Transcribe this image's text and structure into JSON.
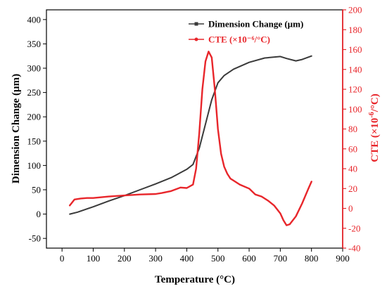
{
  "chart_data": {
    "type": "line",
    "xlabel": "Temperature (°C)",
    "xlim": [
      -50,
      900
    ],
    "xticks": [
      0,
      100,
      200,
      300,
      400,
      500,
      600,
      700,
      800,
      900
    ],
    "y_left": {
      "label": "Dimension Change (µm)",
      "ylim": [
        -70,
        420
      ],
      "ticks": [
        -50,
        0,
        50,
        100,
        150,
        200,
        250,
        300,
        350,
        400
      ],
      "color": "#222222"
    },
    "y_right": {
      "label_main": "CTE (×10",
      "label_sup": "-6",
      "label_end": "/°C)",
      "ylim": [
        -40,
        200
      ],
      "ticks": [
        -40,
        -20,
        0,
        20,
        40,
        60,
        80,
        100,
        120,
        140,
        160,
        180,
        200
      ],
      "color": "#e8262b"
    },
    "grid": false,
    "legend_position": "top-right",
    "series": [
      {
        "name": "Dimension Change (µm)",
        "axis": "left",
        "color": "#3a3a3a",
        "x": [
          25,
          50,
          100,
          150,
          200,
          250,
          300,
          350,
          400,
          420,
          440,
          460,
          480,
          500,
          520,
          550,
          600,
          650,
          700,
          720,
          750,
          770,
          800
        ],
        "y": [
          0,
          4,
          15,
          27,
          38,
          50,
          62,
          75,
          92,
          102,
          135,
          185,
          235,
          270,
          285,
          298,
          312,
          321,
          324,
          320,
          315,
          318,
          325
        ]
      },
      {
        "name": "CTE (×10⁻⁶/°C)",
        "axis": "right",
        "color": "#e8262b",
        "x": [
          25,
          40,
          60,
          80,
          100,
          150,
          200,
          250,
          300,
          320,
          350,
          380,
          400,
          420,
          430,
          440,
          450,
          460,
          470,
          480,
          490,
          500,
          510,
          520,
          530,
          540,
          550,
          570,
          600,
          620,
          640,
          660,
          680,
          700,
          710,
          720,
          730,
          750,
          770,
          790,
          800
        ],
        "y": [
          3,
          9,
          10,
          10.5,
          10.5,
          12,
          13,
          14,
          14.5,
          15.5,
          17.5,
          21,
          20.5,
          24,
          40,
          75,
          120,
          148,
          158,
          152,
          120,
          80,
          55,
          42,
          35,
          30,
          28,
          24,
          20,
          14,
          12,
          8,
          3,
          -5,
          -12,
          -17,
          -16,
          -8,
          5,
          20,
          27
        ]
      }
    ]
  }
}
